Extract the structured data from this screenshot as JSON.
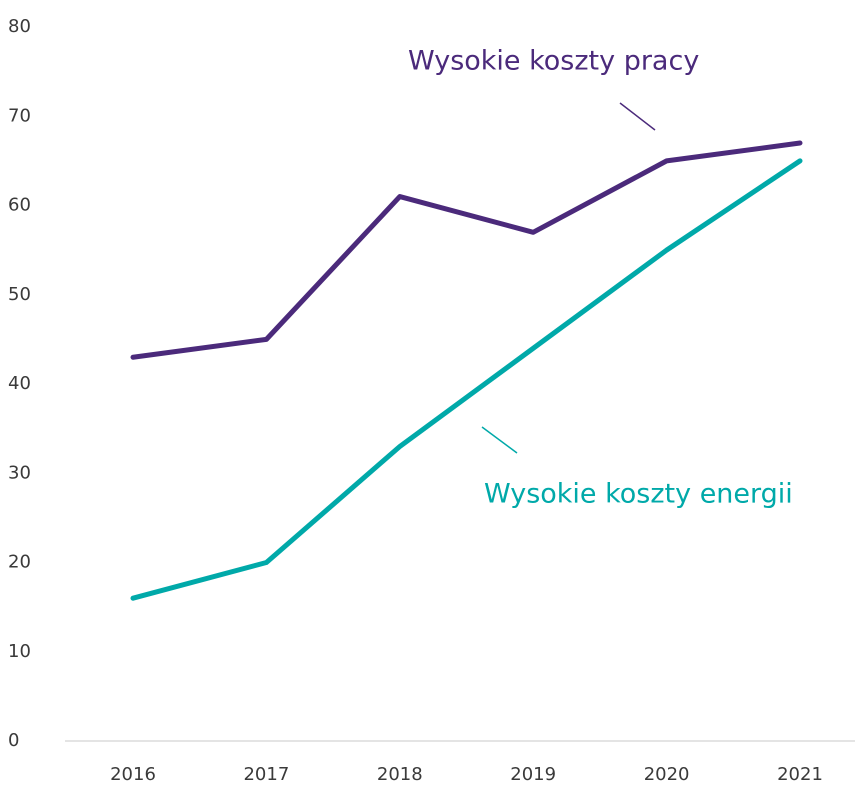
{
  "chart_data": {
    "type": "line",
    "categories": [
      "2016",
      "2017",
      "2018",
      "2019",
      "2020",
      "2021"
    ],
    "series": [
      {
        "name": "Wysokie koszty pracy",
        "color": "#4b2a7b",
        "values": [
          43,
          45,
          61,
          57,
          65,
          67
        ]
      },
      {
        "name": "Wysokie koszty energii",
        "color": "#00a9a9",
        "values": [
          16,
          20,
          33,
          44,
          55,
          65
        ]
      }
    ],
    "ylim": [
      0,
      80
    ],
    "yticks": [
      0,
      10,
      20,
      30,
      40,
      50,
      60,
      70,
      80
    ],
    "grid": false
  }
}
